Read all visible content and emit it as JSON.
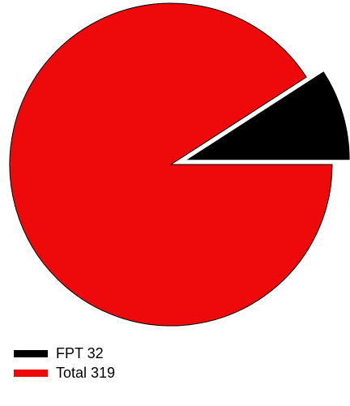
{
  "chart_data": {
    "type": "pie",
    "title": "",
    "slices": [
      {
        "name": "FPT",
        "value": 32,
        "label": "FPT 32",
        "color": "#000000",
        "exploded": true
      },
      {
        "name": "Total",
        "value": 319,
        "label": "Total 319",
        "color": "#ee0a0a",
        "exploded": false
      }
    ],
    "legend_position": "bottom-left",
    "grid": false
  }
}
